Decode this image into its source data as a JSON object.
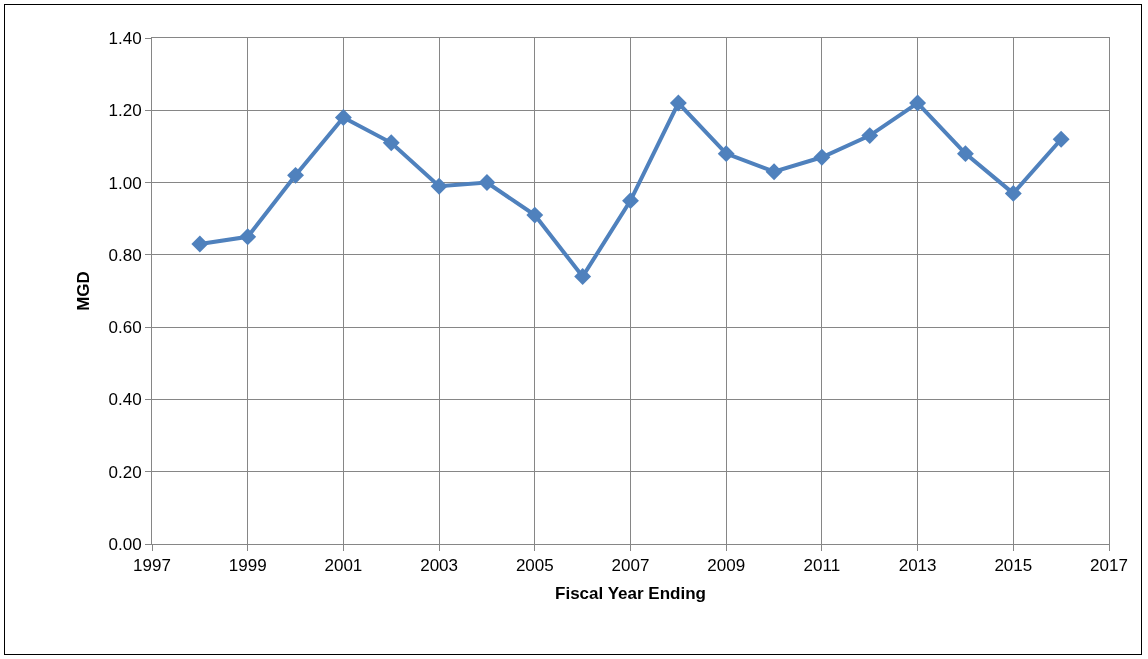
{
  "chart_data": {
    "type": "line",
    "xlabel": "Fiscal Year Ending",
    "ylabel": "MGD",
    "x": [
      1998,
      1999,
      2000,
      2001,
      2002,
      2003,
      2004,
      2005,
      2006,
      2007,
      2008,
      2009,
      2010,
      2011,
      2012,
      2013,
      2014,
      2015,
      2016
    ],
    "series": [
      {
        "color": "#4f81bd",
        "values": [
          0.83,
          0.85,
          1.02,
          1.18,
          1.11,
          0.99,
          1.0,
          0.91,
          0.74,
          0.95,
          1.22,
          1.08,
          1.03,
          1.07,
          1.13,
          1.22,
          1.08,
          0.97,
          1.12
        ]
      }
    ],
    "xlim": [
      1997,
      2017
    ],
    "xticks": [
      1997,
      1999,
      2001,
      2003,
      2005,
      2007,
      2009,
      2011,
      2013,
      2015,
      2017
    ],
    "ylim": [
      0,
      1.4
    ],
    "yticks": [
      {
        "value": 0,
        "label": "0.00"
      },
      {
        "value": 0.2,
        "label": "0.20"
      },
      {
        "value": 0.4,
        "label": "0.40"
      },
      {
        "value": 0.6,
        "label": "0.60"
      },
      {
        "value": 0.8,
        "label": "0.80"
      },
      {
        "value": 1.0,
        "label": "1.00"
      },
      {
        "value": 1.2,
        "label": "1.20"
      },
      {
        "value": 1.4,
        "label": "1.40"
      }
    ],
    "grid": true,
    "legend": false,
    "marker": "diamond",
    "line_style": "solid"
  }
}
